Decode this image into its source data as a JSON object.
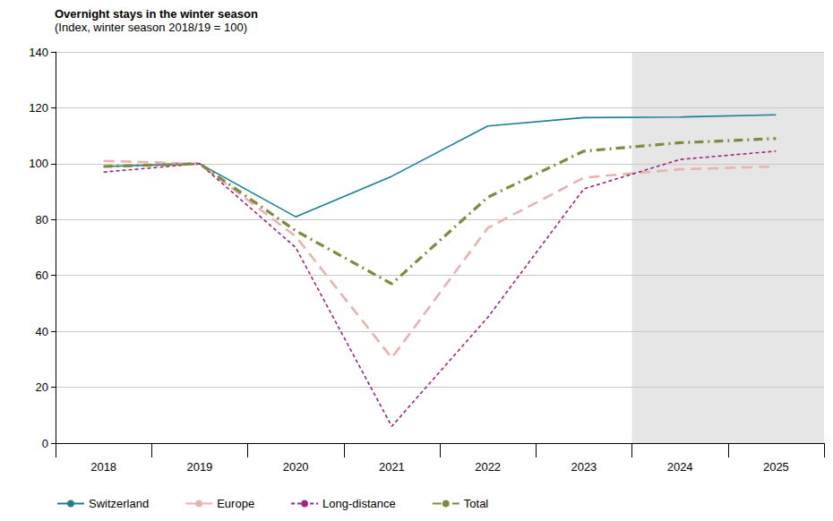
{
  "chart_data": {
    "type": "line",
    "title": "Overnight stays in the winter season",
    "subtitle": "(Index, winter season 2018/19 = 100)",
    "categories": [
      "2018",
      "2019",
      "2020",
      "2021",
      "2022",
      "2023",
      "2024",
      "2025"
    ],
    "series": [
      {
        "name": "Switzerland",
        "color": "#1a7f96",
        "line_style": "solid",
        "values": [
          99,
          100,
          81,
          95.5,
          113.5,
          116.5,
          116.7,
          117.5
        ]
      },
      {
        "name": "Europe",
        "color": "#e6b3ae",
        "line_style": "dashed",
        "values": [
          101,
          100,
          74,
          30.5,
          77,
          95,
          98,
          99
        ]
      },
      {
        "name": "Long-distance",
        "color": "#a0237f",
        "line_style": "dotted",
        "values": [
          97,
          100,
          70,
          6,
          45,
          91,
          101.5,
          104.5
        ]
      },
      {
        "name": "Total",
        "color": "#7d8c3c",
        "line_style": "dashdot",
        "values": [
          99,
          100,
          76,
          57,
          88,
          104.5,
          107.5,
          109
        ]
      }
    ],
    "shaded_categories": [
      "2024",
      "2025"
    ],
    "ylim": [
      0,
      140
    ],
    "yticks": [
      0,
      20,
      40,
      60,
      80,
      100,
      120,
      140
    ],
    "grid": true,
    "legend": "bottom-left"
  }
}
